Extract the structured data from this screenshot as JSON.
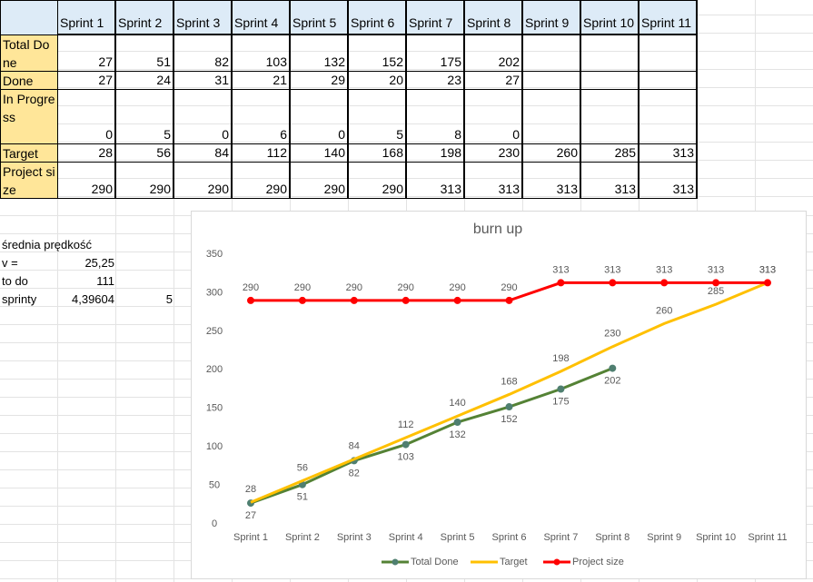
{
  "table": {
    "header": [
      "Sprint 1",
      "Sprint 2",
      "Sprint 3",
      "Sprint 4",
      "Sprint 5",
      "Sprint 6",
      "Sprint 7",
      "Sprint 8",
      "Sprint 9",
      "Sprint 10",
      "Sprint 11"
    ],
    "rows": [
      {
        "label": "Total Done",
        "values": [
          27,
          51,
          82,
          103,
          132,
          152,
          175,
          202
        ]
      },
      {
        "label": "Done",
        "values": [
          27,
          24,
          31,
          21,
          29,
          20,
          23,
          27
        ]
      },
      {
        "label": "In Progress",
        "values": [
          0,
          5,
          0,
          6,
          0,
          5,
          8,
          0
        ]
      },
      {
        "label": "Target",
        "values": [
          28,
          56,
          84,
          112,
          140,
          168,
          198,
          230,
          260,
          285,
          313
        ]
      },
      {
        "label": "Project size",
        "values": [
          290,
          290,
          290,
          290,
          290,
          290,
          313,
          313,
          313,
          313,
          313
        ]
      }
    ]
  },
  "notes": [
    {
      "label": "średnia prędkość"
    },
    {
      "label": "v =",
      "values": [
        "25,25"
      ]
    },
    {
      "label": "to do",
      "values": [
        111
      ]
    },
    {
      "label": "sprinty",
      "values": [
        "4,39604",
        5
      ]
    }
  ],
  "chart_data": {
    "type": "line",
    "title": "burn up",
    "categories": [
      "Sprint 1",
      "Sprint 2",
      "Sprint 3",
      "Sprint 4",
      "Sprint 5",
      "Sprint 6",
      "Sprint 7",
      "Sprint 8",
      "Sprint 9",
      "Sprint 10",
      "Sprint 11"
    ],
    "series": [
      {
        "name": "Total Done",
        "color": "#548235",
        "marker_color": "#4f7f70",
        "values": [
          27,
          51,
          82,
          103,
          132,
          152,
          175,
          202,
          null,
          null,
          null
        ]
      },
      {
        "name": "Target",
        "color": "#ffc000",
        "values": [
          28,
          56,
          84,
          112,
          140,
          168,
          198,
          230,
          260,
          285,
          313
        ]
      },
      {
        "name": "Project size",
        "color": "#ff0000",
        "marker_color": "#ff0000",
        "values": [
          290,
          290,
          290,
          290,
          290,
          290,
          313,
          313,
          313,
          313,
          313
        ]
      }
    ],
    "ylim": [
      0,
      350
    ],
    "yticks": [
      0,
      50,
      100,
      150,
      200,
      250,
      300,
      350
    ],
    "grid": false,
    "legend": "bottom"
  }
}
